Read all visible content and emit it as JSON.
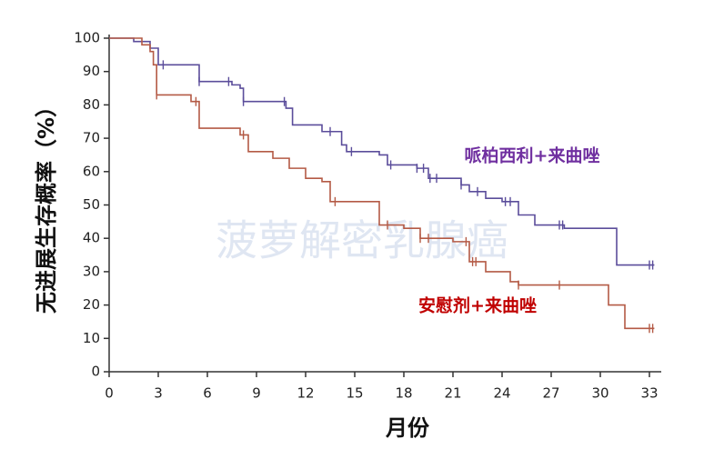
{
  "chart_data": {
    "type": "step-line",
    "ylabel": "无进展生存概率（%）",
    "xlabel": "月份",
    "watermark": "菠萝解密乳腺癌",
    "xlim": [
      0,
      34
    ],
    "ylim": [
      0,
      100
    ],
    "xticks": [
      0,
      3,
      6,
      9,
      12,
      15,
      18,
      21,
      24,
      27,
      30,
      33
    ],
    "yticks": [
      0,
      10,
      20,
      30,
      40,
      50,
      60,
      70,
      80,
      90,
      100
    ],
    "series": [
      {
        "name": "哌柏西利+来曲唑",
        "color": "#5b4d9b",
        "label_color": "#7030a0",
        "x": [
          0,
          1.5,
          1.5,
          2.5,
          2.5,
          3,
          3,
          5.5,
          5.5,
          7.5,
          7.5,
          8,
          8,
          8.2,
          8.2,
          10.8,
          10.8,
          11.2,
          11.2,
          13,
          13,
          14.2,
          14.2,
          14.5,
          14.5,
          16.5,
          16.5,
          17,
          17,
          18.8,
          18.8,
          19.5,
          19.5,
          21.5,
          21.5,
          22,
          22,
          23,
          23,
          24,
          24,
          25,
          25,
          26,
          26,
          27.8,
          27.8,
          31,
          31,
          33.3
        ],
        "values": [
          100,
          100,
          99,
          99,
          97,
          97,
          92,
          92,
          87,
          87,
          86,
          86,
          85,
          85,
          81,
          81,
          79,
          79,
          74,
          74,
          72,
          72,
          68,
          68,
          66,
          66,
          65,
          65,
          62,
          62,
          61,
          61,
          58,
          58,
          56,
          56,
          54,
          54,
          52,
          52,
          51,
          51,
          47,
          47,
          44,
          44,
          43,
          43,
          32,
          32
        ],
        "censor_x": [
          3.3,
          5.5,
          7.3,
          8.2,
          10.7,
          13.5,
          14.8,
          17.2,
          18.8,
          19.2,
          19.6,
          20,
          21.5,
          22.5,
          24.2,
          24.5,
          27.5,
          27.7,
          33,
          33.2
        ]
      },
      {
        "name": "安慰剂+来曲唑",
        "color": "#b45a45",
        "label_color": "#c00000",
        "x": [
          0,
          2,
          2,
          2.5,
          2.5,
          2.7,
          2.7,
          2.9,
          2.9,
          5,
          5,
          5.5,
          5.5,
          8,
          8,
          8.5,
          8.5,
          10,
          10,
          11,
          11,
          12,
          12,
          13,
          13,
          13.5,
          13.5,
          16.5,
          16.5,
          18,
          18,
          19,
          19,
          21,
          21,
          22,
          22,
          23,
          23,
          24.5,
          24.5,
          25,
          25,
          30.5,
          30.5,
          31.5,
          31.5,
          33.3
        ],
        "values": [
          100,
          100,
          98,
          98,
          96,
          96,
          92,
          92,
          83,
          83,
          81,
          81,
          73,
          73,
          71,
          71,
          66,
          66,
          64,
          64,
          61,
          61,
          58,
          58,
          57,
          57,
          51,
          51,
          44,
          44,
          43,
          43,
          40,
          40,
          39,
          39,
          33,
          33,
          30,
          30,
          27,
          27,
          26,
          26,
          20,
          20,
          13,
          13
        ],
        "censor_x": [
          2.9,
          5.3,
          8.2,
          13.8,
          17,
          19,
          19.5,
          21.8,
          22.2,
          22.4,
          25,
          27.5,
          33,
          33.2
        ]
      }
    ]
  }
}
